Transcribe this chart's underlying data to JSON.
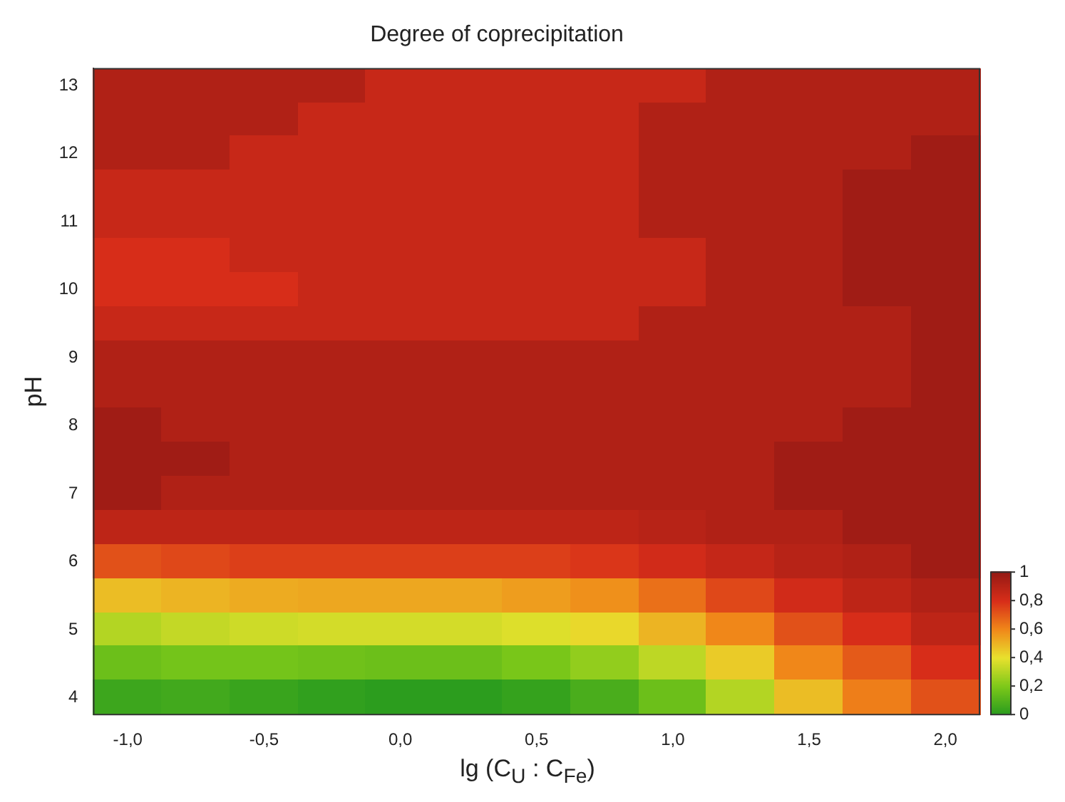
{
  "chart_data": {
    "type": "heatmap",
    "title": "Degree of coprecipitation",
    "xlabel": "lg (C$_{U}$ : C$_{Fe}$)",
    "ylabel": "pH",
    "categories": [
      "-1,0",
      null,
      "-0,5",
      null,
      "0,0",
      null,
      "0,5",
      null,
      "1,0",
      null,
      "1,5",
      null,
      "2,0"
    ],
    "y_categories": [
      "13",
      null,
      "12",
      null,
      "11",
      null,
      "10",
      null,
      "9",
      null,
      "8",
      null,
      "7",
      null,
      "6",
      null,
      "5",
      null,
      "4"
    ],
    "clim": [
      0,
      1
    ],
    "cticks": [
      {
        "value": 1,
        "label": "1"
      },
      {
        "value": 0.8,
        "label": "0,8"
      },
      {
        "value": 0.6,
        "label": "0,6"
      },
      {
        "value": 0.4,
        "label": "0,4"
      },
      {
        "value": 0.2,
        "label": "0,2"
      },
      {
        "value": 0,
        "label": "0"
      }
    ],
    "cells": [
      [
        0.92,
        0.92,
        0.92,
        0.92,
        0.85,
        0.85,
        0.85,
        0.85,
        0.85,
        0.92,
        0.92,
        0.92,
        0.92
      ],
      [
        0.92,
        0.92,
        0.92,
        0.85,
        0.85,
        0.85,
        0.85,
        0.85,
        0.92,
        0.92,
        0.92,
        0.92,
        0.92
      ],
      [
        0.92,
        0.92,
        0.85,
        0.85,
        0.85,
        0.85,
        0.85,
        0.85,
        0.92,
        0.92,
        0.92,
        0.92,
        0.97
      ],
      [
        0.85,
        0.85,
        0.85,
        0.85,
        0.85,
        0.85,
        0.85,
        0.85,
        0.92,
        0.92,
        0.92,
        0.97,
        0.97
      ],
      [
        0.85,
        0.85,
        0.85,
        0.85,
        0.85,
        0.85,
        0.85,
        0.85,
        0.92,
        0.92,
        0.92,
        0.97,
        0.97
      ],
      [
        0.8,
        0.8,
        0.85,
        0.85,
        0.85,
        0.85,
        0.85,
        0.85,
        0.85,
        0.92,
        0.92,
        0.97,
        0.97
      ],
      [
        0.8,
        0.8,
        0.8,
        0.85,
        0.85,
        0.85,
        0.85,
        0.85,
        0.85,
        0.92,
        0.92,
        0.97,
        0.97
      ],
      [
        0.85,
        0.85,
        0.85,
        0.85,
        0.85,
        0.85,
        0.85,
        0.85,
        0.92,
        0.92,
        0.92,
        0.92,
        0.97
      ],
      [
        0.92,
        0.92,
        0.92,
        0.92,
        0.92,
        0.92,
        0.92,
        0.92,
        0.92,
        0.92,
        0.92,
        0.92,
        0.97
      ],
      [
        0.92,
        0.92,
        0.92,
        0.92,
        0.92,
        0.92,
        0.92,
        0.92,
        0.92,
        0.92,
        0.92,
        0.92,
        0.97
      ],
      [
        0.97,
        0.92,
        0.92,
        0.92,
        0.92,
        0.92,
        0.92,
        0.92,
        0.92,
        0.92,
        0.92,
        0.97,
        0.97
      ],
      [
        0.97,
        0.97,
        0.92,
        0.92,
        0.92,
        0.92,
        0.92,
        0.92,
        0.92,
        0.92,
        0.97,
        0.97,
        0.97
      ],
      [
        0.97,
        0.92,
        0.92,
        0.92,
        0.92,
        0.92,
        0.92,
        0.92,
        0.92,
        0.92,
        0.97,
        0.97,
        0.97
      ],
      [
        0.88,
        0.88,
        0.88,
        0.88,
        0.88,
        0.88,
        0.88,
        0.88,
        0.9,
        0.92,
        0.92,
        0.97,
        0.97
      ],
      [
        0.72,
        0.74,
        0.76,
        0.76,
        0.76,
        0.76,
        0.76,
        0.78,
        0.82,
        0.86,
        0.9,
        0.92,
        0.97
      ],
      [
        0.48,
        0.5,
        0.52,
        0.53,
        0.53,
        0.53,
        0.55,
        0.58,
        0.65,
        0.74,
        0.82,
        0.88,
        0.92
      ],
      [
        0.3,
        0.33,
        0.35,
        0.36,
        0.36,
        0.36,
        0.38,
        0.42,
        0.5,
        0.6,
        0.72,
        0.8,
        0.88
      ],
      [
        0.16,
        0.18,
        0.18,
        0.17,
        0.16,
        0.16,
        0.19,
        0.24,
        0.32,
        0.45,
        0.6,
        0.7,
        0.8
      ],
      [
        0.05,
        0.06,
        0.04,
        0.02,
        0.01,
        0.01,
        0.03,
        0.08,
        0.16,
        0.3,
        0.48,
        0.62,
        0.72
      ]
    ]
  }
}
